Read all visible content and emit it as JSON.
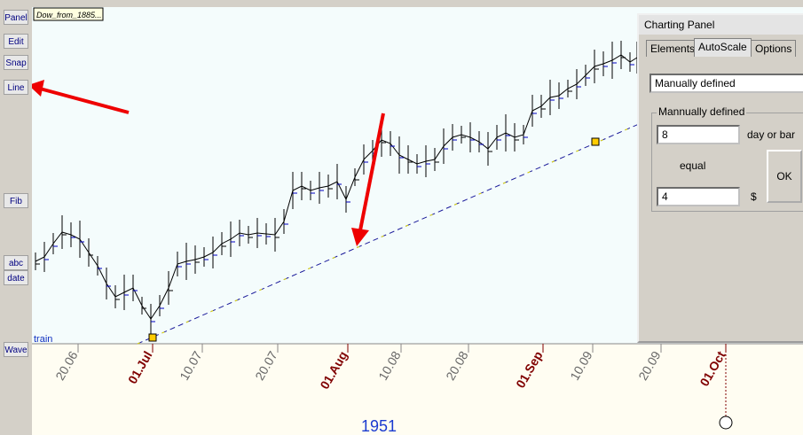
{
  "chart_tab": "Dow_from_1885...",
  "train_label": "train",
  "year": "1951",
  "tools": [
    "Panel",
    "Edit",
    "Snap",
    "Line",
    "Fib",
    "abc",
    "date",
    "Wave"
  ],
  "x_labels": [
    "20.06",
    "01.Jul",
    "10.07",
    "20.07",
    "01.Aug",
    "10.08",
    "20.08",
    "01.Sep",
    "10.09",
    "20.09",
    "01.Oct"
  ],
  "panel": {
    "title": "Charting Panel",
    "tabs": [
      "Elements",
      "AutoScale",
      "Options"
    ],
    "dropdown": "Manually defined",
    "group": "Mannually defined",
    "input1": "8",
    "unit1": "day or bar",
    "equal": "equal",
    "input2": "4",
    "unit2": "$",
    "ok": "OK"
  }
}
